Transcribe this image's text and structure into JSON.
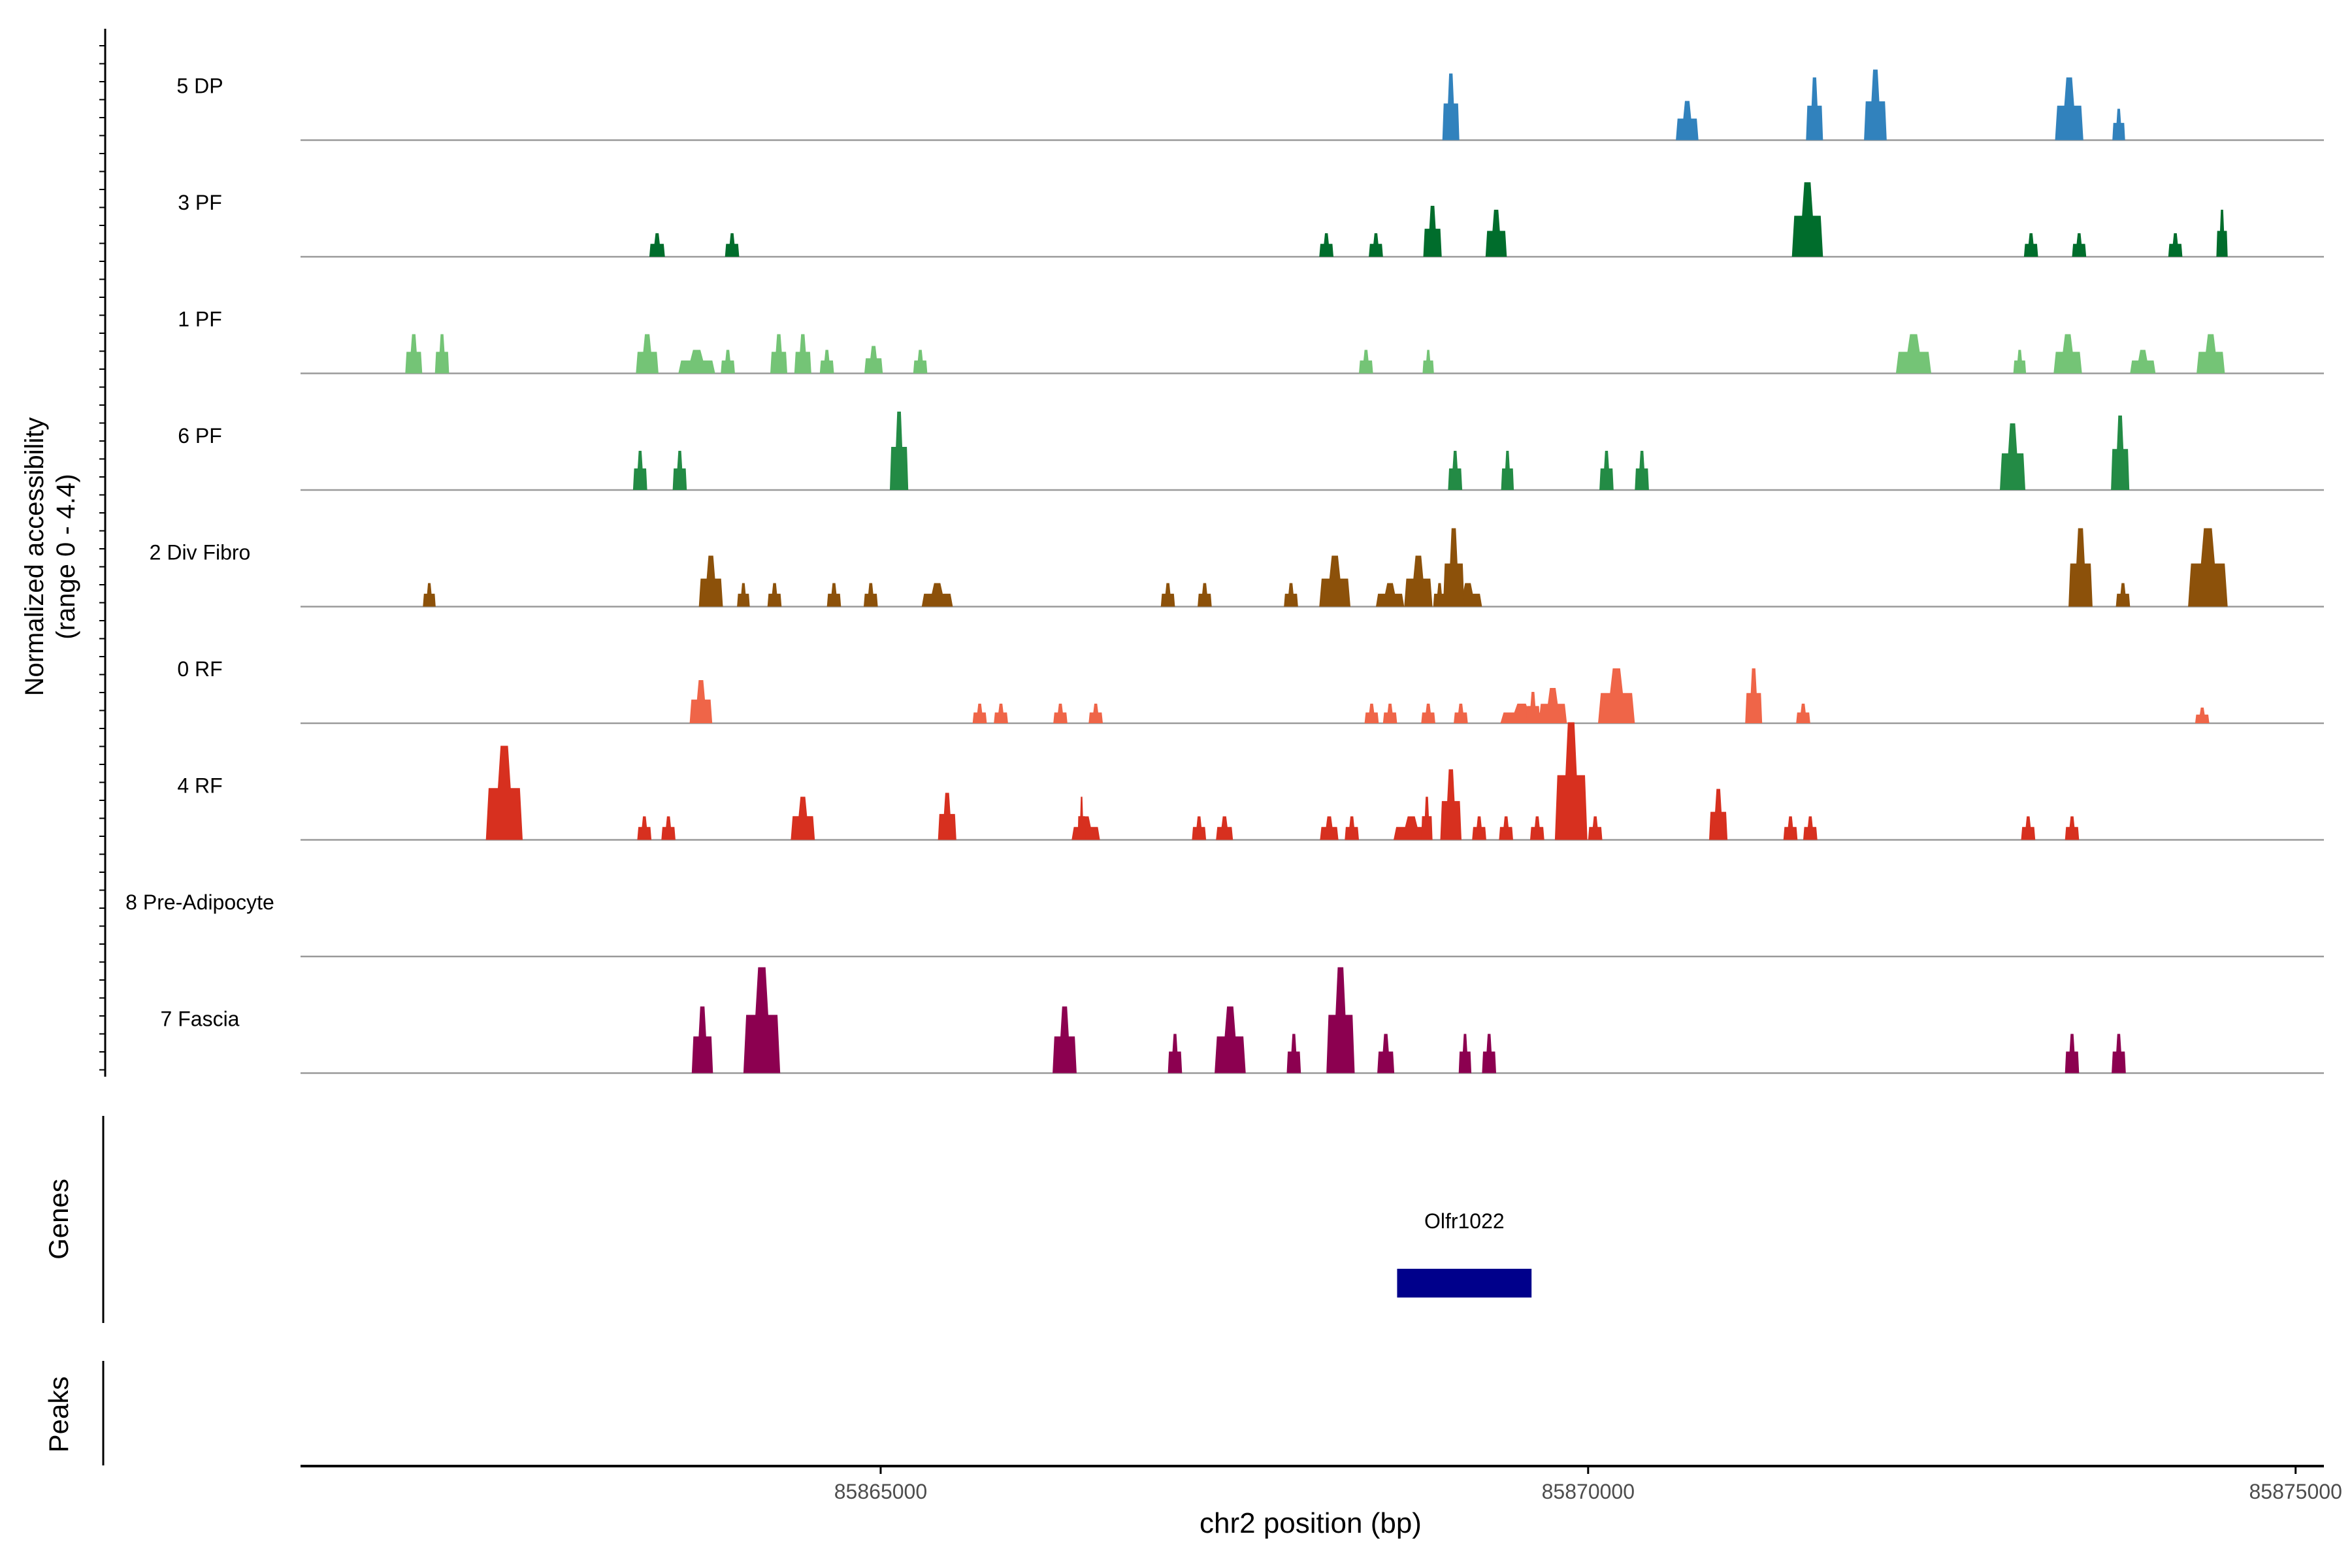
{
  "chart_data": {
    "type": "area",
    "title": "",
    "xlabel": "chr2 position (bp)",
    "ylabel_line1": "Normalized accessibility",
    "ylabel_line2": "(range 0 - 4.4)",
    "y_range": [
      0,
      4.4
    ],
    "xlim": [
      85860900,
      85875200
    ],
    "x_ticks": [
      {
        "value": 85865000,
        "label": "85865000"
      },
      {
        "value": 85870000,
        "label": "85870000"
      },
      {
        "value": 85875000,
        "label": "85875000"
      }
    ],
    "tracks": [
      {
        "name": "5 DP",
        "color": "#3182bd",
        "peaks": [
          [
            85869030,
            0.12,
            1.7
          ],
          [
            85870700,
            0.16,
            1.0
          ],
          [
            85871600,
            0.12,
            1.6
          ],
          [
            85872030,
            0.16,
            1.8
          ],
          [
            85873400,
            0.2,
            1.6
          ],
          [
            85873750,
            0.09,
            0.8
          ]
        ]
      },
      {
        "name": "3 PF",
        "color": "#006d2c",
        "peaks": [
          [
            85863420,
            0.11,
            0.6
          ],
          [
            85863950,
            0.1,
            0.6
          ],
          [
            85868150,
            0.1,
            0.6
          ],
          [
            85868500,
            0.1,
            0.6
          ],
          [
            85868900,
            0.13,
            1.3
          ],
          [
            85869350,
            0.15,
            1.2
          ],
          [
            85871550,
            0.22,
            1.9
          ],
          [
            85873130,
            0.1,
            0.6
          ],
          [
            85873470,
            0.1,
            0.6
          ],
          [
            85874150,
            0.1,
            0.6
          ],
          [
            85874480,
            0.08,
            1.2
          ]
        ]
      },
      {
        "name": "1 PF",
        "color": "#74c476",
        "peaks": [
          [
            85861700,
            0.12,
            1.0
          ],
          [
            85861900,
            0.1,
            1.0
          ],
          [
            85863350,
            0.16,
            1.0
          ],
          [
            85863700,
            0.26,
            0.6
          ],
          [
            85863920,
            0.1,
            0.6
          ],
          [
            85864280,
            0.12,
            1.0
          ],
          [
            85864450,
            0.12,
            1.0
          ],
          [
            85864620,
            0.1,
            0.6
          ],
          [
            85864950,
            0.13,
            0.7
          ],
          [
            85865280,
            0.1,
            0.6
          ],
          [
            85868430,
            0.1,
            0.6
          ],
          [
            85868870,
            0.08,
            0.6
          ],
          [
            85872300,
            0.25,
            1.0
          ],
          [
            85873050,
            0.09,
            0.6
          ],
          [
            85873390,
            0.2,
            1.0
          ],
          [
            85873920,
            0.18,
            0.6
          ],
          [
            85874400,
            0.2,
            1.0
          ]
        ]
      },
      {
        "name": "6 PF",
        "color": "#238b45",
        "peaks": [
          [
            85863300,
            0.1,
            1.0
          ],
          [
            85863580,
            0.1,
            1.0
          ],
          [
            85865130,
            0.13,
            2.0
          ],
          [
            85869060,
            0.1,
            1.0
          ],
          [
            85869430,
            0.09,
            1.0
          ],
          [
            85870130,
            0.1,
            1.0
          ],
          [
            85870380,
            0.1,
            1.0
          ],
          [
            85873000,
            0.18,
            1.7
          ],
          [
            85873760,
            0.13,
            1.9
          ]
        ]
      },
      {
        "name": "2 Div Fibro",
        "color": "#8c510a",
        "peaks": [
          [
            85861810,
            0.09,
            0.6
          ],
          [
            85863800,
            0.17,
            1.3
          ],
          [
            85864030,
            0.09,
            0.6
          ],
          [
            85864250,
            0.1,
            0.6
          ],
          [
            85864670,
            0.1,
            0.6
          ],
          [
            85864930,
            0.1,
            0.6
          ],
          [
            85865400,
            0.22,
            0.6
          ],
          [
            85867030,
            0.1,
            0.6
          ],
          [
            85867290,
            0.1,
            0.6
          ],
          [
            85867900,
            0.1,
            0.6
          ],
          [
            85868210,
            0.22,
            1.3
          ],
          [
            85868600,
            0.2,
            0.6
          ],
          [
            85868800,
            0.2,
            1.3
          ],
          [
            85868950,
            0.09,
            0.6
          ],
          [
            85869150,
            0.2,
            0.6
          ],
          [
            85869050,
            0.15,
            2.0
          ],
          [
            85873480,
            0.17,
            2.0
          ],
          [
            85873780,
            0.1,
            0.6
          ],
          [
            85874380,
            0.28,
            2.0
          ]
        ]
      },
      {
        "name": "0 RF",
        "color": "#ef6548",
        "peaks": [
          [
            85863730,
            0.16,
            1.1
          ],
          [
            85865700,
            0.1,
            0.5
          ],
          [
            85865850,
            0.1,
            0.5
          ],
          [
            85866270,
            0.1,
            0.5
          ],
          [
            85866520,
            0.1,
            0.5
          ],
          [
            85868470,
            0.1,
            0.5
          ],
          [
            85868600,
            0.1,
            0.5
          ],
          [
            85868870,
            0.1,
            0.5
          ],
          [
            85869100,
            0.1,
            0.5
          ],
          [
            85869530,
            0.3,
            0.5
          ],
          [
            85869750,
            0.2,
            0.9
          ],
          [
            85869610,
            0.1,
            0.8
          ],
          [
            85870200,
            0.26,
            1.4
          ],
          [
            85871170,
            0.12,
            1.4
          ],
          [
            85871520,
            0.1,
            0.5
          ],
          [
            85874340,
            0.1,
            0.4
          ]
        ]
      },
      {
        "name": "4 RF",
        "color": "#d7301f",
        "peaks": [
          [
            85862340,
            0.26,
            2.4
          ],
          [
            85863330,
            0.1,
            0.6
          ],
          [
            85863500,
            0.1,
            0.6
          ],
          [
            85864450,
            0.17,
            1.1
          ],
          [
            85865470,
            0.13,
            1.2
          ],
          [
            85866450,
            0.2,
            0.6
          ],
          [
            85866420,
            0.04,
            1.1
          ],
          [
            85867250,
            0.1,
            0.6
          ],
          [
            85867430,
            0.12,
            0.6
          ],
          [
            85868170,
            0.13,
            0.6
          ],
          [
            85868330,
            0.1,
            0.6
          ],
          [
            85868750,
            0.25,
            0.6
          ],
          [
            85868860,
            0.08,
            1.1
          ],
          [
            85869030,
            0.15,
            1.8
          ],
          [
            85869230,
            0.1,
            0.6
          ],
          [
            85869420,
            0.1,
            0.6
          ],
          [
            85869640,
            0.1,
            0.6
          ],
          [
            85869880,
            0.23,
            3.0
          ],
          [
            85870050,
            0.1,
            0.6
          ],
          [
            85870920,
            0.13,
            1.3
          ],
          [
            85871430,
            0.1,
            0.6
          ],
          [
            85871570,
            0.1,
            0.6
          ],
          [
            85873110,
            0.1,
            0.6
          ],
          [
            85873420,
            0.1,
            0.6
          ]
        ]
      },
      {
        "name": "8 Pre-Adipocyte",
        "color": "#807dba",
        "peaks": []
      },
      {
        "name": "7 Fascia",
        "color": "#8c0050",
        "peaks": [
          [
            85863740,
            0.15,
            1.7
          ],
          [
            85864160,
            0.26,
            2.7
          ],
          [
            85866300,
            0.17,
            1.7
          ],
          [
            85867080,
            0.1,
            1.0
          ],
          [
            85867470,
            0.22,
            1.7
          ],
          [
            85867920,
            0.1,
            1.0
          ],
          [
            85868250,
            0.2,
            2.7
          ],
          [
            85868570,
            0.12,
            1.0
          ],
          [
            85869130,
            0.09,
            1.0
          ],
          [
            85869300,
            0.1,
            1.0
          ],
          [
            85873420,
            0.1,
            1.0
          ],
          [
            85873750,
            0.1,
            1.0
          ]
        ]
      }
    ],
    "genes_label": "Genes",
    "peaks_label": "Peaks",
    "genes": [
      {
        "name": "Olfr1022",
        "start": 85868650,
        "end": 85869600,
        "color": "#00008b"
      }
    ]
  }
}
